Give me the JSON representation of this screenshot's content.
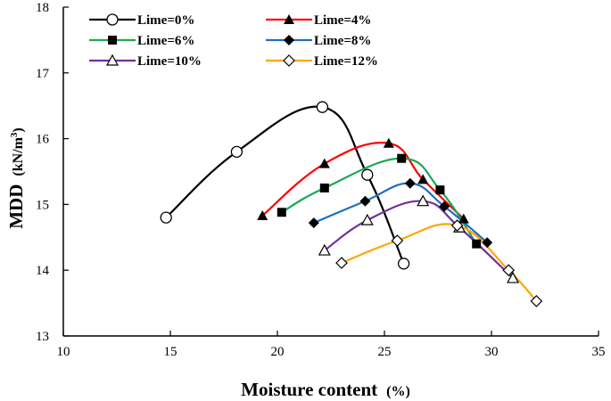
{
  "chart_data": {
    "type": "line",
    "xlabel_main": "Moisture content",
    "xlabel_unit": "(%)",
    "ylabel_main": "MDD",
    "ylabel_unit_prefix": "(kN/m",
    "ylabel_unit_sup": "3",
    "ylabel_unit_suffix": ")",
    "xlim": [
      10,
      35
    ],
    "ylim": [
      13,
      18
    ],
    "x_ticks": [
      "10",
      "15",
      "20",
      "25",
      "30",
      "35"
    ],
    "y_ticks": [
      "13",
      "14",
      "15",
      "16",
      "17",
      "18"
    ],
    "grid": false,
    "legend_position": "top-left, inside plot, 2 columns",
    "series": [
      {
        "name": "Lime=0%",
        "color": "#000000",
        "marker": "circle-open",
        "x": [
          14.8,
          18.1,
          22.1,
          24.2,
          25.9
        ],
        "y": [
          14.8,
          15.8,
          16.48,
          15.45,
          14.1
        ]
      },
      {
        "name": "Lime=4%",
        "color": "#ff0000",
        "marker": "triangle-filled",
        "x": [
          19.3,
          22.2,
          25.2,
          26.8,
          28.7
        ],
        "y": [
          14.83,
          15.62,
          15.93,
          15.38,
          14.78
        ]
      },
      {
        "name": "Lime=6%",
        "color": "#1aaa55",
        "marker": "square-filled",
        "x": [
          20.2,
          22.2,
          25.8,
          27.6,
          29.3
        ],
        "y": [
          14.88,
          15.25,
          15.7,
          15.22,
          14.4
        ]
      },
      {
        "name": "Lime=8%",
        "color": "#1f6fc0",
        "marker": "diamond-filled",
        "x": [
          21.7,
          24.1,
          26.2,
          27.8,
          29.8
        ],
        "y": [
          14.72,
          15.05,
          15.32,
          14.97,
          14.42
        ]
      },
      {
        "name": "Lime=10%",
        "color": "#7030a0",
        "marker": "triangle-open",
        "x": [
          22.2,
          24.2,
          26.8,
          28.5,
          31.0
        ],
        "y": [
          14.3,
          14.76,
          15.05,
          14.65,
          13.88
        ]
      },
      {
        "name": "Lime=12%",
        "color": "#ffa500",
        "marker": "diamond-open",
        "x": [
          23.0,
          25.6,
          28.4,
          30.8,
          32.1
        ],
        "y": [
          14.11,
          14.45,
          14.68,
          14.0,
          13.53
        ]
      }
    ]
  }
}
